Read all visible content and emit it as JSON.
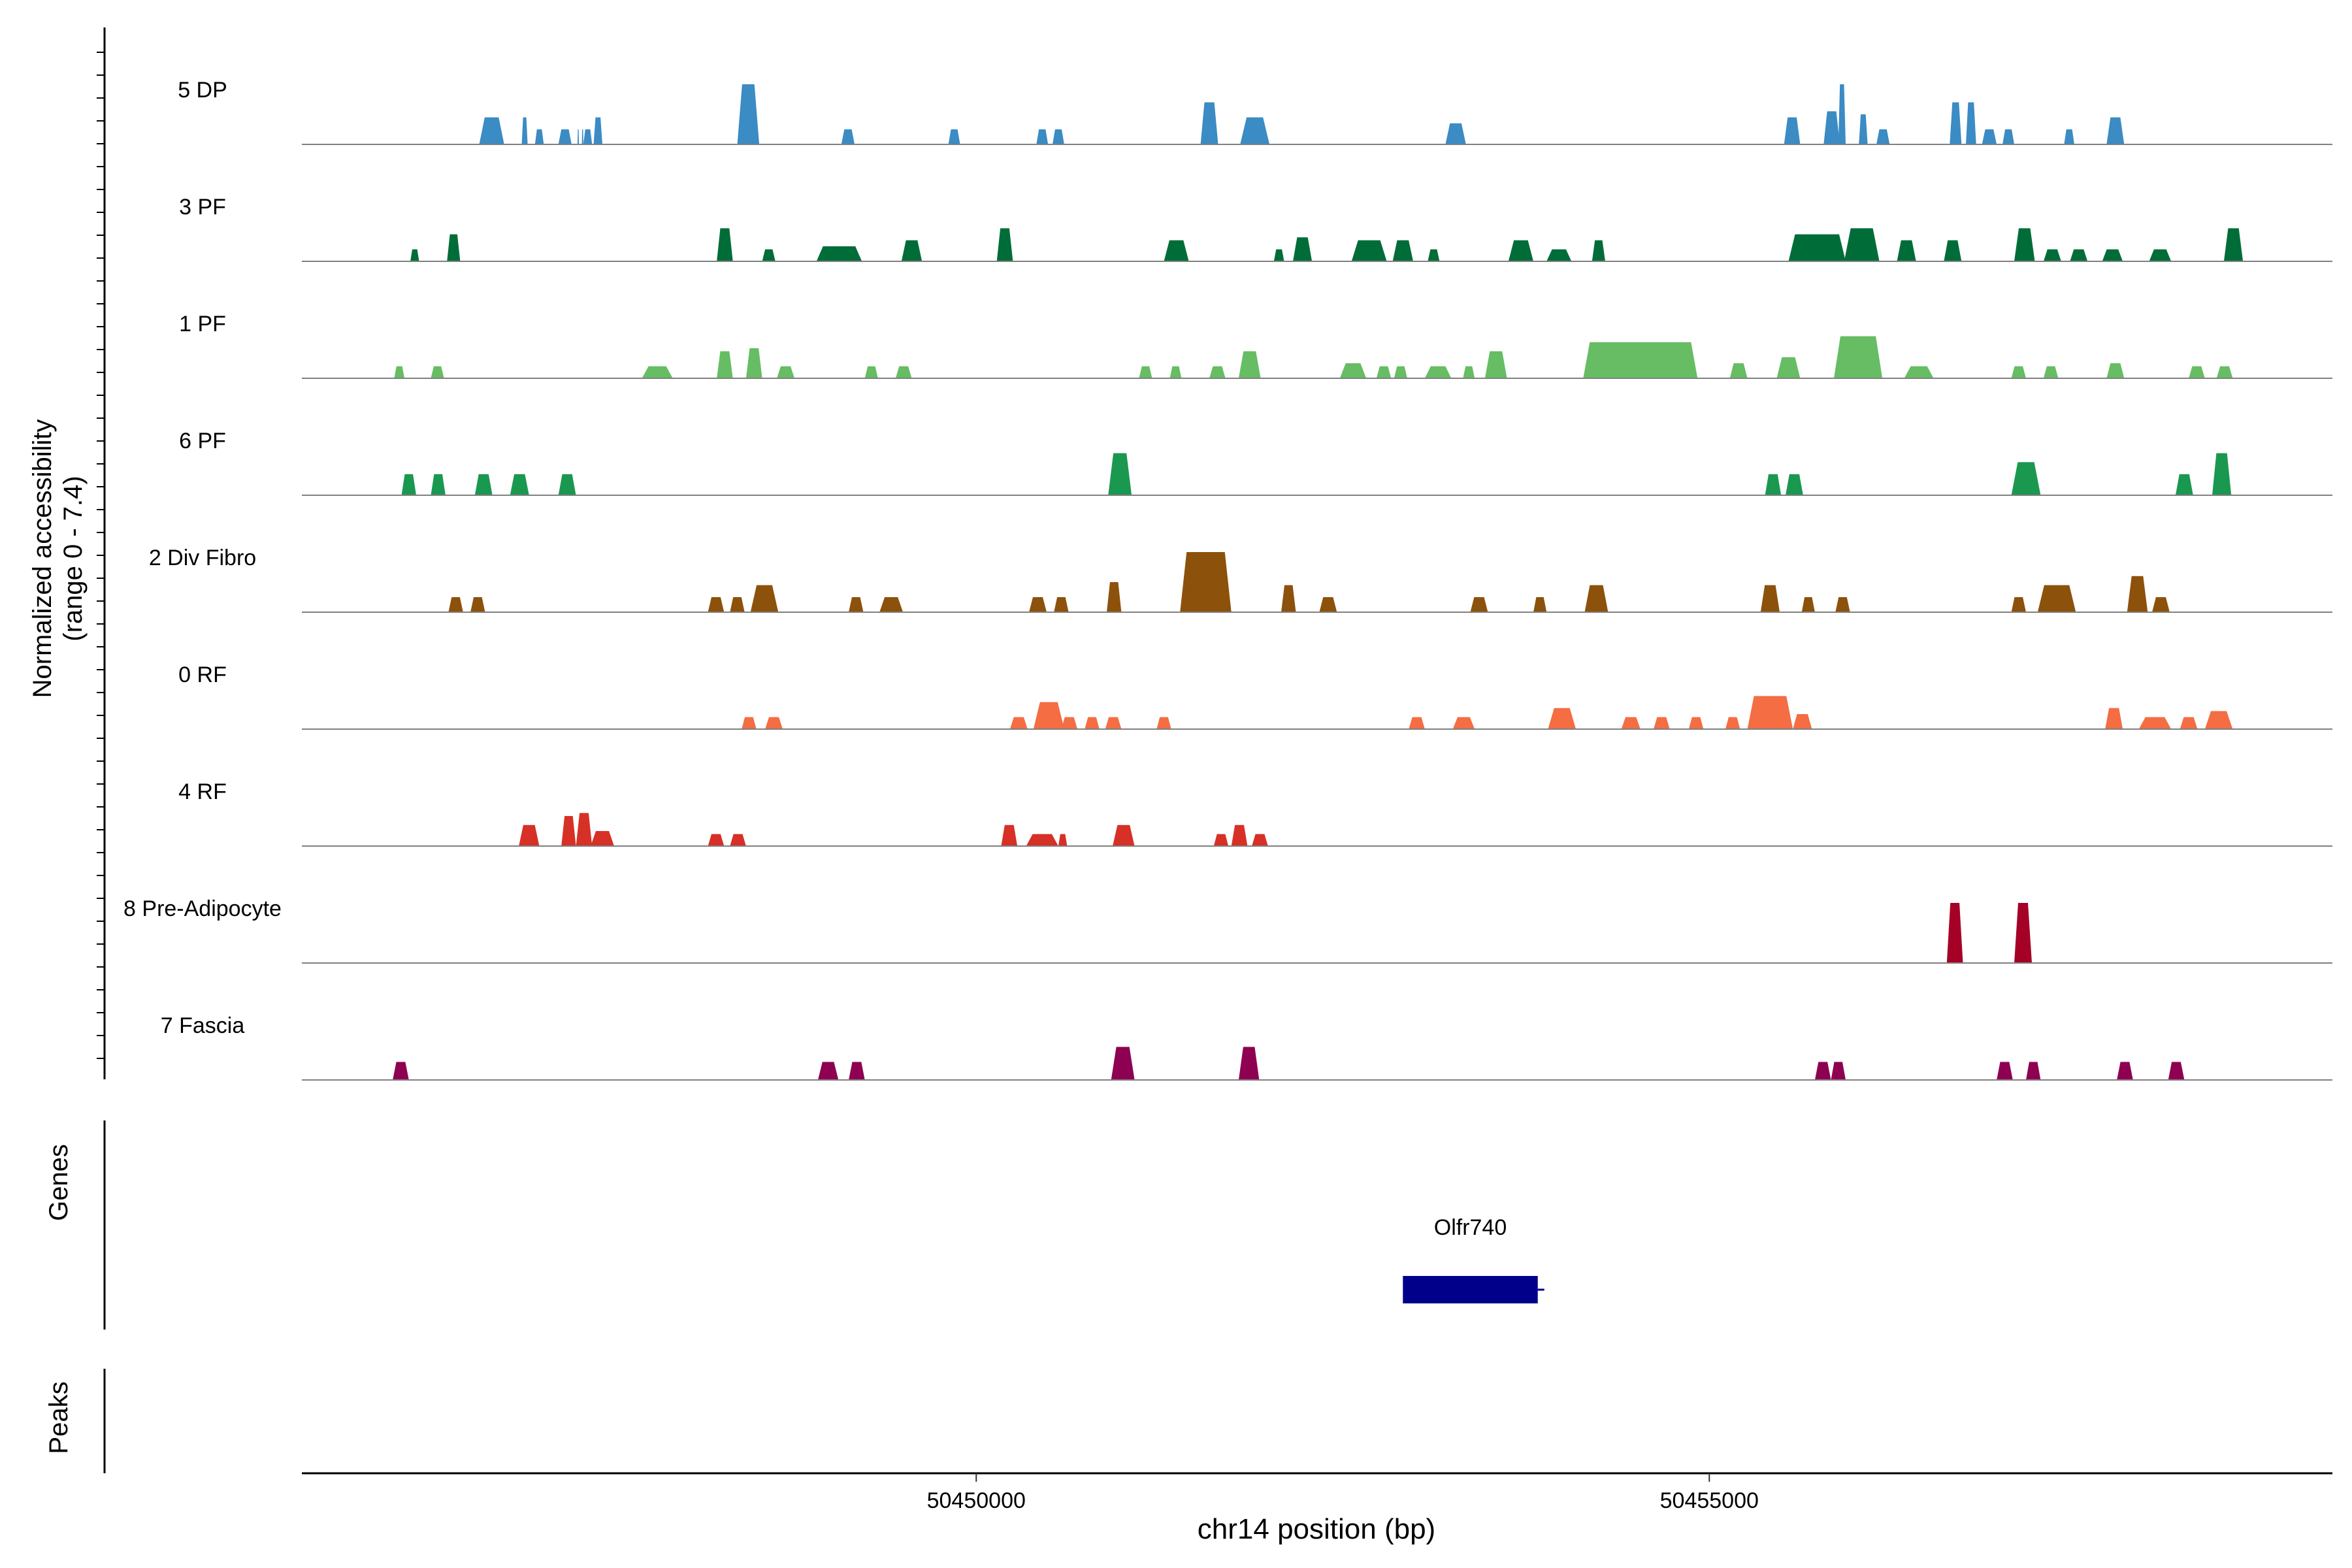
{
  "chart_data": {
    "type": "area",
    "title": "",
    "xlabel": "chr14 position (bp)",
    "ylabel_line1": "Normalized accessibility",
    "ylabel_line2": "(range 0 - 7.4)",
    "y_range": [
      0,
      7.4
    ],
    "xlim": [
      50445400,
      50459250
    ],
    "x_ticks": [
      50450000,
      50455000
    ],
    "x_tick_labels": [
      "50450000",
      "50455000"
    ],
    "panel_labels": {
      "genes": "Genes",
      "peaks": "Peaks"
    },
    "tracks": [
      {
        "name": "5 DP",
        "color": "#3B8BC4",
        "peaks": [
          [
            50446610,
            50446780,
            0.45
          ],
          [
            50446900,
            50446940,
            0.45
          ],
          [
            50446990,
            50447050,
            0.25
          ],
          [
            50447150,
            50447240,
            0.25
          ],
          [
            50447280,
            50447290,
            0.25
          ],
          [
            50447310,
            50447320,
            0.25
          ],
          [
            50447320,
            50447380,
            0.25
          ],
          [
            50447390,
            50447450,
            0.45
          ],
          [
            50448370,
            50448520,
            1.0
          ],
          [
            50448420,
            50448470,
            0.75
          ],
          [
            50449080,
            50449170,
            0.25
          ],
          [
            50449810,
            50449890,
            0.25
          ],
          [
            50450410,
            50450490,
            0.25
          ],
          [
            50450520,
            50450600,
            0.25
          ],
          [
            50451530,
            50451650,
            0.7
          ],
          [
            50451800,
            50452000,
            0.45
          ],
          [
            50453200,
            50453340,
            0.35
          ],
          [
            50455510,
            50455620,
            0.45
          ],
          [
            50455780,
            50455890,
            0.55
          ],
          [
            50455880,
            50455930,
            1.0
          ],
          [
            50456020,
            50456080,
            0.5
          ],
          [
            50456140,
            50456230,
            0.25
          ],
          [
            50456640,
            50456720,
            0.7
          ],
          [
            50456750,
            50456820,
            0.7
          ],
          [
            50456860,
            50456960,
            0.25
          ],
          [
            50457000,
            50457080,
            0.25
          ],
          [
            50457420,
            50457490,
            0.25
          ],
          [
            50457710,
            50457830,
            0.45
          ]
        ]
      },
      {
        "name": "3 PF",
        "color": "#006D39",
        "peaks": [
          [
            50446140,
            50446200,
            0.2
          ],
          [
            50446390,
            50446480,
            0.45
          ],
          [
            50448230,
            50448340,
            0.55
          ],
          [
            50448540,
            50448630,
            0.2
          ],
          [
            50448910,
            50449220,
            0.25
          ],
          [
            50449490,
            50449630,
            0.35
          ],
          [
            50450140,
            50450250,
            0.55
          ],
          [
            50451280,
            50451450,
            0.35
          ],
          [
            50452030,
            50452100,
            0.2
          ],
          [
            50452160,
            50452290,
            0.4
          ],
          [
            50452560,
            50452800,
            0.35
          ],
          [
            50452840,
            50452980,
            0.35
          ],
          [
            50453080,
            50453160,
            0.2
          ],
          [
            50453630,
            50453800,
            0.35
          ],
          [
            50453890,
            50454060,
            0.2
          ],
          [
            50454200,
            50454290,
            0.35
          ],
          [
            50455540,
            50455930,
            0.45
          ],
          [
            50455920,
            50456160,
            0.55
          ],
          [
            50456280,
            50456410,
            0.35
          ],
          [
            50456600,
            50456720,
            0.35
          ],
          [
            50457080,
            50457220,
            0.55
          ],
          [
            50457280,
            50457400,
            0.2
          ],
          [
            50457460,
            50457580,
            0.2
          ],
          [
            50457680,
            50457820,
            0.2
          ],
          [
            50458000,
            50458150,
            0.2
          ],
          [
            50458510,
            50458640,
            0.55
          ]
        ]
      },
      {
        "name": "1 PF",
        "color": "#66BD63",
        "peaks": [
          [
            50446030,
            50446100,
            0.2
          ],
          [
            50446280,
            50446370,
            0.2
          ],
          [
            50447720,
            50447930,
            0.2
          ],
          [
            50448230,
            50448340,
            0.45
          ],
          [
            50448430,
            50448540,
            0.5
          ],
          [
            50448640,
            50448760,
            0.2
          ],
          [
            50449240,
            50449330,
            0.2
          ],
          [
            50449450,
            50449560,
            0.2
          ],
          [
            50451110,
            50451200,
            0.2
          ],
          [
            50451320,
            50451400,
            0.2
          ],
          [
            50451590,
            50451700,
            0.2
          ],
          [
            50451790,
            50451940,
            0.45
          ],
          [
            50452480,
            50452660,
            0.25
          ],
          [
            50452730,
            50452830,
            0.2
          ],
          [
            50452850,
            50452940,
            0.2
          ],
          [
            50453060,
            50453240,
            0.2
          ],
          [
            50453320,
            50453400,
            0.2
          ],
          [
            50453470,
            50453620,
            0.45
          ],
          [
            50454140,
            50454920,
            0.6
          ],
          [
            50455140,
            50455260,
            0.25
          ],
          [
            50455460,
            50455620,
            0.35
          ],
          [
            50455850,
            50456180,
            0.7
          ],
          [
            50456330,
            50456530,
            0.2
          ],
          [
            50457060,
            50457160,
            0.2
          ],
          [
            50457280,
            50457380,
            0.2
          ],
          [
            50457710,
            50457830,
            0.25
          ],
          [
            50458270,
            50458380,
            0.2
          ],
          [
            50458460,
            50458570,
            0.2
          ]
        ]
      },
      {
        "name": "6 PF",
        "color": "#1A9850",
        "peaks": [
          [
            50446080,
            50446180,
            0.35
          ],
          [
            50446280,
            50446380,
            0.35
          ],
          [
            50446580,
            50446700,
            0.35
          ],
          [
            50446820,
            50446950,
            0.35
          ],
          [
            50447150,
            50447270,
            0.35
          ],
          [
            50450900,
            50451060,
            0.7
          ],
          [
            50455380,
            50455490,
            0.35
          ],
          [
            50455520,
            50455640,
            0.35
          ],
          [
            50457060,
            50457260,
            0.55
          ],
          [
            50458180,
            50458300,
            0.35
          ],
          [
            50458430,
            50458560,
            0.7
          ]
        ]
      },
      {
        "name": "2 Div Fibro",
        "color": "#8C510A",
        "peaks": [
          [
            50446400,
            50446500,
            0.25
          ],
          [
            50446550,
            50446650,
            0.25
          ],
          [
            50448170,
            50448280,
            0.25
          ],
          [
            50448320,
            50448420,
            0.25
          ],
          [
            50448460,
            50448650,
            0.45
          ],
          [
            50449130,
            50449230,
            0.25
          ],
          [
            50449340,
            50449500,
            0.25
          ],
          [
            50450360,
            50450480,
            0.25
          ],
          [
            50450530,
            50450630,
            0.25
          ],
          [
            50450890,
            50450990,
            0.5
          ],
          [
            50451390,
            50451740,
            1.0
          ],
          [
            50452080,
            50452180,
            0.45
          ],
          [
            50452340,
            50452460,
            0.25
          ],
          [
            50453370,
            50453490,
            0.25
          ],
          [
            50453800,
            50453890,
            0.25
          ],
          [
            50454150,
            50454310,
            0.45
          ],
          [
            50455350,
            50455480,
            0.45
          ],
          [
            50455630,
            50455720,
            0.25
          ],
          [
            50455860,
            50455960,
            0.25
          ],
          [
            50457060,
            50457160,
            0.25
          ],
          [
            50457240,
            50457500,
            0.45
          ],
          [
            50457850,
            50457990,
            0.6
          ],
          [
            50458020,
            50458140,
            0.25
          ]
        ]
      },
      {
        "name": "0 RF",
        "color": "#F46D43",
        "peaks": [
          [
            50448400,
            50448500,
            0.2
          ],
          [
            50448560,
            50448680,
            0.2
          ],
          [
            50450230,
            50450350,
            0.2
          ],
          [
            50450390,
            50450600,
            0.45
          ],
          [
            50450580,
            50450690,
            0.2
          ],
          [
            50450740,
            50450840,
            0.2
          ],
          [
            50450880,
            50450990,
            0.2
          ],
          [
            50451230,
            50451330,
            0.2
          ],
          [
            50452950,
            50453060,
            0.2
          ],
          [
            50453250,
            50453400,
            0.2
          ],
          [
            50453900,
            50454090,
            0.35
          ],
          [
            50454400,
            50454530,
            0.2
          ],
          [
            50454620,
            50454730,
            0.2
          ],
          [
            50454860,
            50454960,
            0.2
          ],
          [
            50455110,
            50455210,
            0.2
          ],
          [
            50455260,
            50455570,
            0.55
          ],
          [
            50455570,
            50455700,
            0.25
          ],
          [
            50457700,
            50457820,
            0.35
          ],
          [
            50457930,
            50458150,
            0.2
          ],
          [
            50458210,
            50458330,
            0.2
          ],
          [
            50458380,
            50458570,
            0.3
          ]
        ]
      },
      {
        "name": "4 RF",
        "color": "#D73027",
        "peaks": [
          [
            50446880,
            50447020,
            0.35
          ],
          [
            50447170,
            50447270,
            0.5
          ],
          [
            50447270,
            50447380,
            0.55
          ],
          [
            50447370,
            50447530,
            0.25
          ],
          [
            50448170,
            50448280,
            0.2
          ],
          [
            50448320,
            50448430,
            0.2
          ],
          [
            50450170,
            50450280,
            0.35
          ],
          [
            50450340,
            50450560,
            0.2
          ],
          [
            50450560,
            50450620,
            0.2
          ],
          [
            50450930,
            50451080,
            0.35
          ],
          [
            50451620,
            50451720,
            0.2
          ],
          [
            50451740,
            50451850,
            0.35
          ],
          [
            50451880,
            50451990,
            0.2
          ]
        ]
      },
      {
        "name": "8 Pre-Adipocyte",
        "color": "#A50026",
        "peaks": [
          [
            50456620,
            50456730,
            1.0
          ],
          [
            50457080,
            50457200,
            1.0
          ]
        ]
      },
      {
        "name": "7 Fascia",
        "color": "#8E0152",
        "peaks": [
          [
            50446020,
            50446130,
            0.3
          ],
          [
            50448920,
            50449060,
            0.3
          ],
          [
            50449130,
            50449240,
            0.3
          ],
          [
            50450920,
            50451080,
            0.55
          ],
          [
            50451790,
            50451930,
            0.55
          ],
          [
            50455720,
            50455830,
            0.3
          ],
          [
            50455830,
            50455930,
            0.3
          ],
          [
            50456960,
            50457070,
            0.3
          ],
          [
            50457160,
            50457260,
            0.3
          ],
          [
            50457780,
            50457890,
            0.3
          ],
          [
            50458130,
            50458240,
            0.3
          ]
        ]
      }
    ],
    "genes": [
      {
        "name": "Olfr740",
        "start": 50452910,
        "end": 50453830,
        "color": "#00008B"
      }
    ],
    "peaks_track": []
  }
}
